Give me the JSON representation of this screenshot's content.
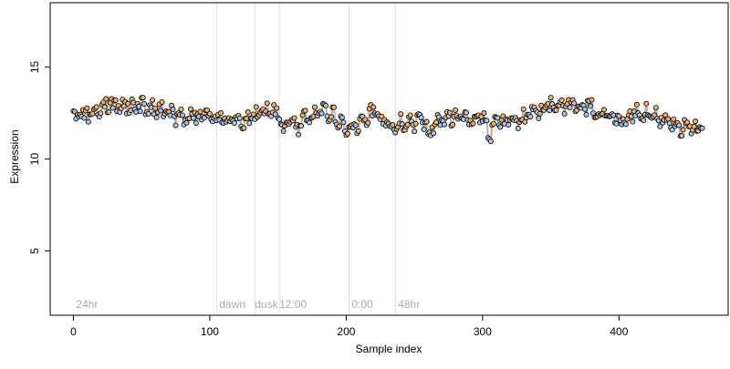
{
  "chart_data": {
    "type": "scatter",
    "xlabel": "Sample index",
    "ylabel": "Expression",
    "xlim": [
      -17,
      480
    ],
    "ylim": [
      1.5,
      18.5
    ],
    "x_ticks": [
      0,
      100,
      200,
      300,
      400
    ],
    "y_ticks": [
      5,
      10,
      15
    ],
    "grid": false,
    "colors": {
      "point_blue": "#a8c4ea",
      "point_orange": "#f0b06a",
      "line_blue": "#9bb8dd",
      "line_orange": "#e2a05a",
      "divider": "#dddddd",
      "annotation_text": "#aaaaaa"
    },
    "segment_dividers": [
      105,
      133,
      151,
      202,
      236
    ],
    "segment_labels": [
      {
        "x": 2,
        "text": "24hr"
      },
      {
        "x": 107,
        "text": "dawn"
      },
      {
        "x": 133,
        "text": "dusk"
      },
      {
        "x": 151,
        "text": "12:00"
      },
      {
        "x": 204,
        "text": "0:00"
      },
      {
        "x": 238,
        "text": "48hr"
      }
    ],
    "anchors": [
      [
        0,
        12.3
      ],
      [
        10,
        12.4
      ],
      [
        20,
        12.8
      ],
      [
        30,
        13.0
      ],
      [
        40,
        12.9
      ],
      [
        50,
        12.9
      ],
      [
        60,
        12.7
      ],
      [
        70,
        12.5
      ],
      [
        80,
        12.2
      ],
      [
        90,
        12.4
      ],
      [
        100,
        12.4
      ],
      [
        105,
        12.3
      ],
      [
        110,
        12.2
      ],
      [
        120,
        12.1
      ],
      [
        130,
        12.1
      ],
      [
        133,
        12.3
      ],
      [
        140,
        12.6
      ],
      [
        150,
        12.5
      ],
      [
        155,
        11.6
      ],
      [
        160,
        12.0
      ],
      [
        165,
        11.8
      ],
      [
        170,
        12.3
      ],
      [
        180,
        12.6
      ],
      [
        190,
        12.5
      ],
      [
        195,
        12.0
      ],
      [
        200,
        11.6
      ],
      [
        205,
        11.8
      ],
      [
        210,
        11.9
      ],
      [
        220,
        12.6
      ],
      [
        230,
        11.8
      ],
      [
        236,
        11.6
      ],
      [
        240,
        12.0
      ],
      [
        250,
        11.9
      ],
      [
        255,
        12.3
      ],
      [
        260,
        11.4
      ],
      [
        270,
        12.2
      ],
      [
        280,
        12.3
      ],
      [
        290,
        12.1
      ],
      [
        300,
        12.3
      ],
      [
        305,
        11.3
      ],
      [
        310,
        12.0
      ],
      [
        320,
        12.1
      ],
      [
        330,
        12.2
      ],
      [
        340,
        12.5
      ],
      [
        350,
        13.0
      ],
      [
        360,
        12.6
      ],
      [
        365,
        13.1
      ],
      [
        370,
        12.7
      ],
      [
        380,
        12.9
      ],
      [
        385,
        12.3
      ],
      [
        390,
        12.6
      ],
      [
        400,
        12.0
      ],
      [
        410,
        12.4
      ],
      [
        420,
        12.6
      ],
      [
        430,
        12.2
      ],
      [
        440,
        11.9
      ],
      [
        450,
        11.6
      ],
      [
        460,
        11.7
      ]
    ],
    "sample_count": 462
  }
}
